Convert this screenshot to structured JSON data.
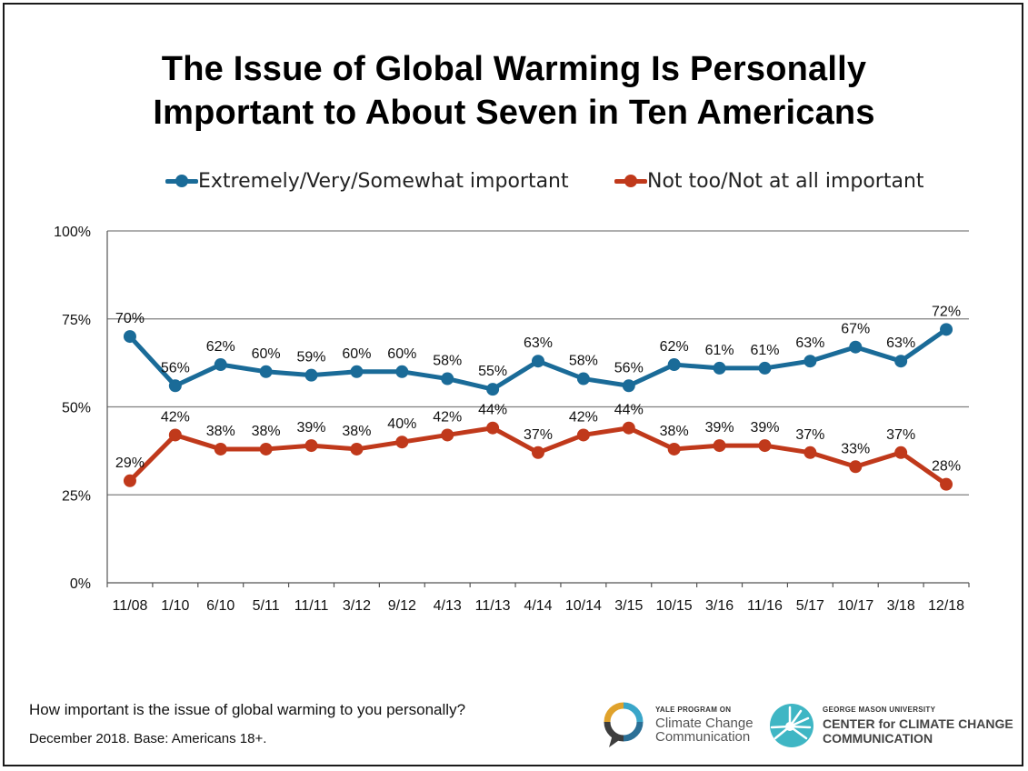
{
  "chart_data": {
    "type": "line",
    "title": "The Issue of Global Warming Is Personally Important to About Seven in Ten Americans",
    "title_lines": [
      "The Issue of Global Warming Is Personally",
      "Important to About Seven in Ten Americans"
    ],
    "categories": [
      "11/08",
      "1/10",
      "6/10",
      "5/11",
      "11/11",
      "3/12",
      "9/12",
      "4/13",
      "11/13",
      "4/14",
      "10/14",
      "3/15",
      "10/15",
      "3/16",
      "11/16",
      "5/17",
      "10/17",
      "3/18",
      "12/18"
    ],
    "series": [
      {
        "name": "Extremely/Very/Somewhat important",
        "color": "#1a6b98",
        "values": [
          70,
          56,
          62,
          60,
          59,
          60,
          60,
          58,
          55,
          63,
          58,
          56,
          62,
          61,
          61,
          63,
          67,
          63,
          72
        ],
        "labels": [
          "70%",
          "56%",
          "62%",
          "60%",
          "59%",
          "60%",
          "60%",
          "58%",
          "55%",
          "63%",
          "58%",
          "56%",
          "62%",
          "61%",
          "61%",
          "63%",
          "67%",
          "63%",
          "72%"
        ]
      },
      {
        "name": "Not too/Not at all important",
        "color": "#c0391b",
        "values": [
          29,
          42,
          38,
          38,
          39,
          38,
          40,
          42,
          44,
          37,
          42,
          44,
          38,
          39,
          39,
          37,
          33,
          37,
          28
        ],
        "labels": [
          "29%",
          "42%",
          "38%",
          "38%",
          "39%",
          "38%",
          "40%",
          "42%",
          "44%",
          "37%",
          "42%",
          "44%",
          "38%",
          "39%",
          "39%",
          "37%",
          "33%",
          "37%",
          "28%"
        ]
      }
    ],
    "ylim": [
      0,
      100
    ],
    "yticks": [
      0,
      25,
      50,
      75,
      100
    ],
    "ytick_labels": [
      "0%",
      "25%",
      "50%",
      "75%",
      "100%"
    ],
    "xlabel": "",
    "ylabel": "",
    "grid": true,
    "legend_position": "top"
  },
  "footer": {
    "question": "How important is the issue of global warming to you personally?",
    "base": "December 2018. Base: Americans 18+."
  },
  "logos": {
    "yale_small": "YALE PROGRAM ON",
    "yale_line1": "Climate Change",
    "yale_line2": "Communication",
    "gmu_small": "GEORGE MASON UNIVERSITY",
    "gmu_line1": "CENTER for CLIMATE CHANGE",
    "gmu_line2": "COMMUNICATION"
  },
  "colors": {
    "axis": "#555555",
    "grid": "#7f7f7f",
    "text": "#111111"
  }
}
